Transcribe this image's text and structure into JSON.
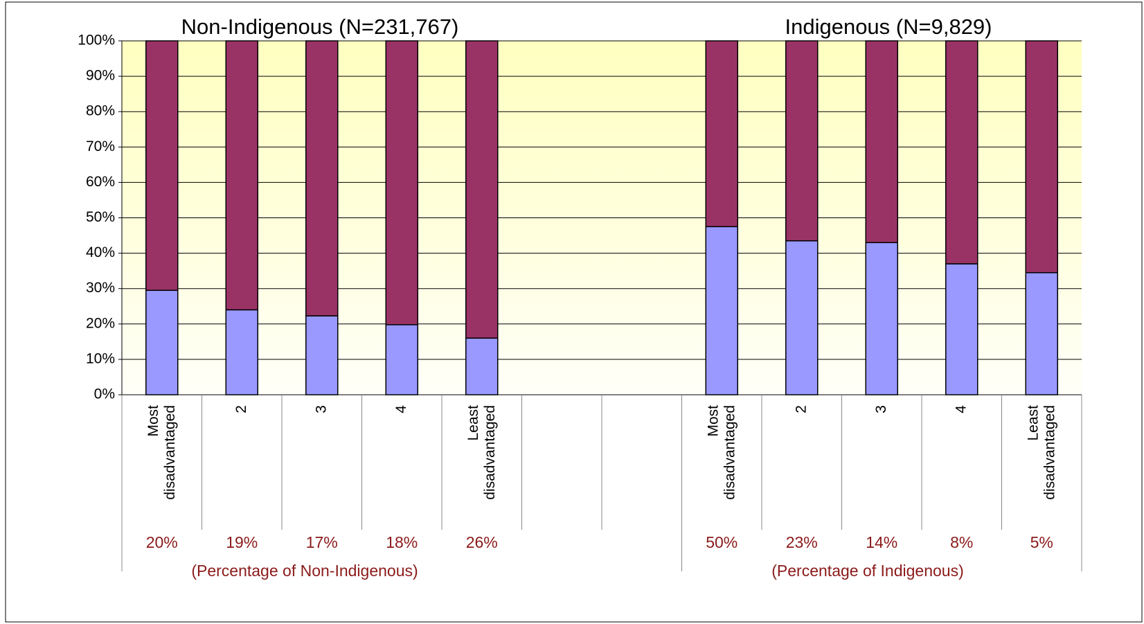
{
  "chart_data": {
    "type": "stacked_bar",
    "categories": [
      "Most disadvantaged",
      "2",
      "3",
      "4",
      "Least disadvantaged",
      null,
      null,
      "Most disadvantaged",
      "2",
      "3",
      "4",
      "Least disadvantaged"
    ],
    "series": [
      {
        "color": "#9999ff",
        "values": [
          29.5,
          24,
          22.3,
          19.8,
          16,
          null,
          null,
          47.5,
          43.5,
          43,
          37,
          34.5
        ]
      },
      {
        "color": "#993366",
        "values": [
          70.5,
          76,
          77.7,
          80.2,
          84,
          null,
          null,
          52.5,
          56.5,
          57,
          63,
          65.5
        ]
      }
    ],
    "ylim": [
      0,
      100
    ],
    "yticks": [
      {
        "value": 0,
        "label": "0%"
      },
      {
        "value": 10,
        "label": "10%"
      },
      {
        "value": 20,
        "label": "20%"
      },
      {
        "value": 30,
        "label": "30%"
      },
      {
        "value": 40,
        "label": "40%"
      },
      {
        "value": 50,
        "label": "50%"
      },
      {
        "value": 60,
        "label": "60%"
      },
      {
        "value": 70,
        "label": "70%"
      },
      {
        "value": 80,
        "label": "80%"
      },
      {
        "value": 90,
        "label": "90%"
      },
      {
        "value": 100,
        "label": "100%"
      }
    ],
    "grid": true,
    "groups": [
      {
        "title": "Non-Indigenous (N=231,767)",
        "share_labels": [
          "20%",
          "19%",
          "17%",
          "18%",
          "26%"
        ],
        "subtitle": "(Percentage of Non-Indigenous)"
      },
      {
        "title": "Indigenous (N=9,829)",
        "share_labels": [
          "50%",
          "23%",
          "14%",
          "8%",
          "5%"
        ],
        "subtitle": "(Percentage of Indigenous)"
      }
    ]
  }
}
